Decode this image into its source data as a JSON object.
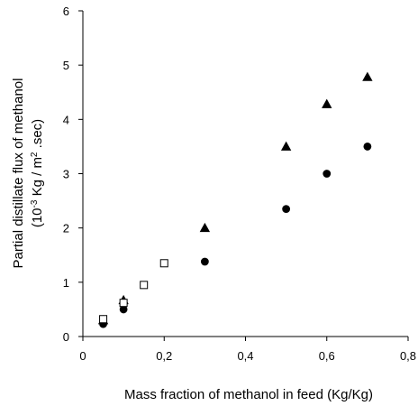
{
  "chart_data": {
    "type": "scatter",
    "xlim": [
      0,
      0.8
    ],
    "ylim": [
      0,
      6
    ],
    "x_ticks": [
      "0",
      "0,2",
      "0,4",
      "0,6",
      "0,8"
    ],
    "x_tick_values": [
      0,
      0.2,
      0.4,
      0.6,
      0.8
    ],
    "y_ticks": [
      "0",
      "1",
      "2",
      "3",
      "4",
      "5",
      "6"
    ],
    "y_tick_values": [
      0,
      1,
      2,
      3,
      4,
      5,
      6
    ],
    "xlabel": "Mass fraction of methanol in feed (Kg/Kg)",
    "ylabel_line1": "Partial distillate flux of  methanol",
    "ylabel_line2_base": "(10",
    "ylabel_line2_sup1": "-3",
    "ylabel_line2_mid": " Kg / m",
    "ylabel_line2_sup2": "2",
    "ylabel_line2_end": " .sec)",
    "grid": false,
    "legend": "none",
    "series": [
      {
        "marker": "triangle",
        "fill": "#000000",
        "points": [
          [
            0.05,
            0.3
          ],
          [
            0.1,
            0.67
          ],
          [
            0.3,
            2.0
          ],
          [
            0.5,
            3.5
          ],
          [
            0.6,
            4.28
          ],
          [
            0.7,
            4.78
          ]
        ]
      },
      {
        "marker": "circle",
        "fill": "#000000",
        "points": [
          [
            0.05,
            0.23
          ],
          [
            0.1,
            0.5
          ],
          [
            0.3,
            1.38
          ],
          [
            0.5,
            2.35
          ],
          [
            0.6,
            3.0
          ],
          [
            0.7,
            3.5
          ]
        ]
      },
      {
        "marker": "square",
        "fill": "#ffffff",
        "points": [
          [
            0.05,
            0.32
          ],
          [
            0.1,
            0.62
          ],
          [
            0.15,
            0.95
          ],
          [
            0.2,
            1.35
          ]
        ]
      }
    ]
  }
}
